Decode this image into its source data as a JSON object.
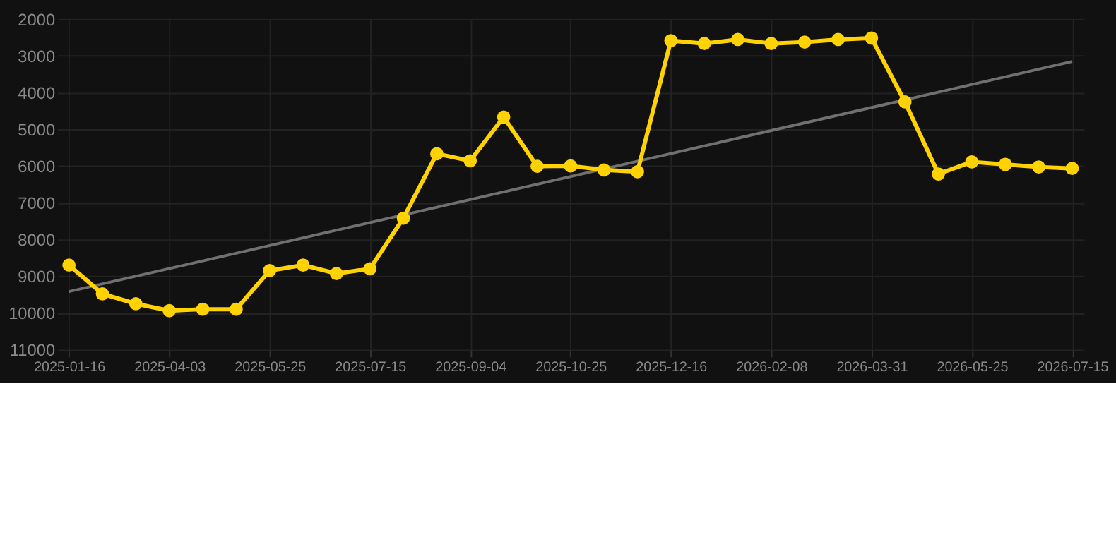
{
  "chart_data": {
    "type": "line",
    "categories": [
      "2025-01-16",
      null,
      null,
      "2025-04-03",
      null,
      null,
      "2025-05-25",
      null,
      null,
      "2025-07-15",
      null,
      null,
      "2025-09-04",
      null,
      null,
      "2025-10-25",
      null,
      null,
      "2025-12-16",
      null,
      null,
      "2026-02-08",
      null,
      null,
      "2026-03-31",
      null,
      null,
      "2026-05-25",
      null,
      null,
      "2026-07-15"
    ],
    "series": [
      {
        "color": "#ffd200",
        "marker": "circle",
        "values": [
          8700,
          9480,
          9750,
          9940,
          9900,
          9900,
          8850,
          8700,
          8930,
          8800,
          7420,
          5670,
          5860,
          4670,
          6010,
          6000,
          6110,
          6160,
          2590,
          2670,
          2560,
          2670,
          2630,
          2560,
          2520,
          4260,
          6220,
          5890,
          5960,
          6030,
          6070
        ]
      },
      {
        "type": "line",
        "color": "#707070",
        "marker": "none",
        "values": [
          9420,
          null,
          null,
          null,
          null,
          null,
          null,
          null,
          null,
          null,
          null,
          null,
          null,
          null,
          null,
          null,
          null,
          null,
          null,
          null,
          null,
          null,
          null,
          null,
          null,
          null,
          null,
          null,
          null,
          null,
          3160
        ]
      }
    ],
    "ylim": [
      11000,
      2000
    ],
    "yticks": [
      2000,
      3000,
      4000,
      5000,
      6000,
      7000,
      8000,
      9000,
      10000,
      11000
    ],
    "grid": true
  }
}
